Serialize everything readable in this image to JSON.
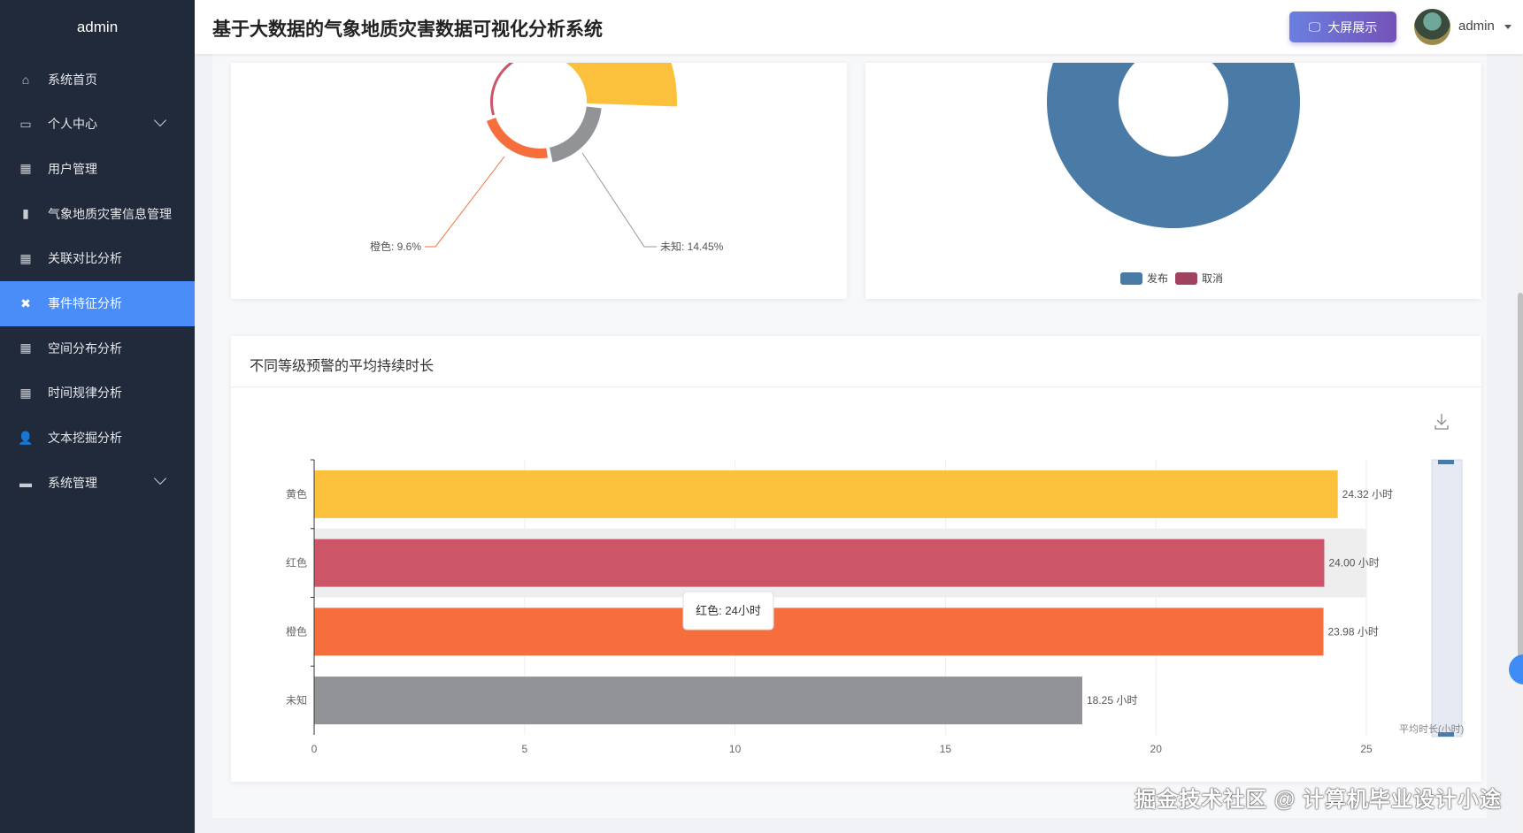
{
  "sidebar": {
    "brand": "admin",
    "items": [
      {
        "label": "系统首页",
        "icon": "home-icon"
      },
      {
        "label": "个人中心",
        "icon": "id-card-icon",
        "expandable": true
      },
      {
        "label": "用户管理",
        "icon": "grid-icon"
      },
      {
        "label": "气象地质灾害信息管理",
        "icon": "book-icon"
      },
      {
        "label": "关联对比分析",
        "icon": "grid-icon"
      },
      {
        "label": "事件特征分析",
        "icon": "cross-icon",
        "active": true
      },
      {
        "label": "空间分布分析",
        "icon": "grid-icon"
      },
      {
        "label": "时间规律分析",
        "icon": "grid-icon"
      },
      {
        "label": "文本挖掘分析",
        "icon": "user-icon"
      },
      {
        "label": "系统管理",
        "icon": "briefcase-icon",
        "expandable": true
      }
    ]
  },
  "header": {
    "title": "基于大数据的气象地质灾害数据可视化分析系统",
    "big_screen_label": "大屏展示",
    "user": "admin"
  },
  "colors": {
    "sidebar": "#212a3a",
    "active": "#4b8df8",
    "yellow": "#fbc13d",
    "red": "#cd5568",
    "orange": "#f56e3c",
    "gray": "#929396",
    "publish": "#4a7aa6",
    "cancel": "#a0415f"
  },
  "watermark": "掘金技术社区 @ 计算机毕业设计小途",
  "chart_data": [
    {
      "type": "pie",
      "variant": "rose",
      "labels": [
        {
          "name": "橙色",
          "text": "橙色: 9.6%",
          "value": 9.6
        },
        {
          "name": "未知",
          "text": "未知: 14.45%",
          "value": 14.45
        }
      ]
    },
    {
      "type": "pie",
      "variant": "donut",
      "legend": [
        "发布",
        "取消"
      ],
      "legend_position": "bottom"
    },
    {
      "type": "bar",
      "orientation": "horizontal",
      "title": "不同等级预警的平均持续时长",
      "categories": [
        "黄色",
        "红色",
        "橙色",
        "未知"
      ],
      "values": [
        24.32,
        24.0,
        23.98,
        18.25
      ],
      "value_labels": [
        "24.32 小时",
        "24.00 小时",
        "23.98 小时",
        "18.25 小时"
      ],
      "xlim": [
        0,
        25
      ],
      "xticks": [
        "0",
        "5",
        "10",
        "15",
        "20",
        "25"
      ],
      "datazoom_label": "平均时长(小时)",
      "tooltip": "红色: 24小时",
      "highlighted": "红色",
      "grid": true
    }
  ]
}
